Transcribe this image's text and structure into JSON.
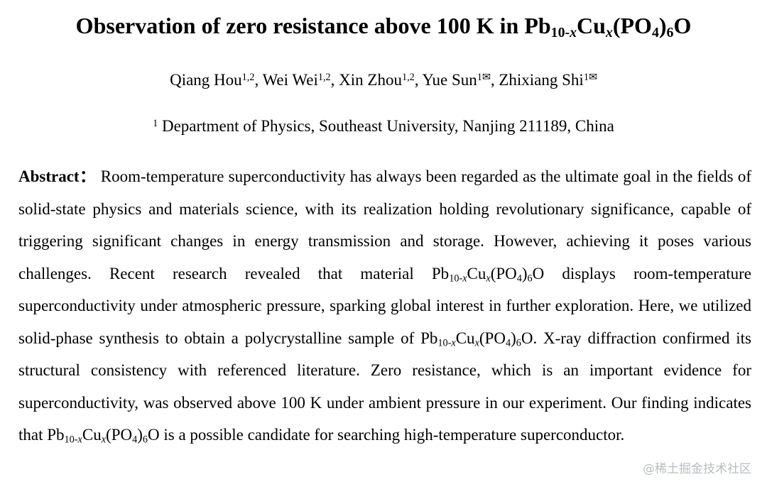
{
  "title": [
    {
      "text": "Observation of zero resistance above 100 K in Pb"
    },
    {
      "text": "10-",
      "sub": true
    },
    {
      "text": "x",
      "sub": true,
      "italic": true
    },
    {
      "text": "Cu"
    },
    {
      "text": "x",
      "sub": true,
      "italic": true
    },
    {
      "text": "(PO"
    },
    {
      "text": "4",
      "sub": true
    },
    {
      "text": ")"
    },
    {
      "text": "6",
      "sub": true
    },
    {
      "text": "O"
    }
  ],
  "authors": [
    {
      "text": "Qiang Hou"
    },
    {
      "text": "1,2",
      "sup": true
    },
    {
      "text": ", Wei Wei"
    },
    {
      "text": "1,2",
      "sup": true
    },
    {
      "text": ", Xin Zhou"
    },
    {
      "text": "1,2",
      "sup": true
    },
    {
      "text": ", Yue Sun"
    },
    {
      "text": "1✉",
      "sup": true
    },
    {
      "text": ", Zhixiang Shi"
    },
    {
      "text": "1✉",
      "sup": true
    }
  ],
  "affiliation": [
    {
      "text": "1",
      "sup": true
    },
    {
      "text": " Department of Physics, Southeast University, Nanjing 211189, China"
    }
  ],
  "abstract": [
    {
      "text": "Abstract：",
      "bold": true
    },
    {
      "text": " Room-temperature superconductivity has always been regarded as the ultimate goal in the fields of solid-state physics and materials science, with its realization holding revolutionary significance, capable of triggering significant changes in energy transmission and storage. However, achieving it poses various challenges. Recent research revealed that material Pb"
    },
    {
      "text": "10-",
      "sub": true
    },
    {
      "text": "x",
      "sub": true,
      "italic": true
    },
    {
      "text": "Cu"
    },
    {
      "text": "x",
      "sub": true,
      "italic": true
    },
    {
      "text": "(PO"
    },
    {
      "text": "4",
      "sub": true
    },
    {
      "text": ")"
    },
    {
      "text": "6",
      "sub": true
    },
    {
      "text": "O displays room-temperature superconductivity under atmospheric pressure, sparking global interest in further exploration. Here, we utilized solid-phase synthesis to obtain a polycrystalline sample of Pb"
    },
    {
      "text": "10-",
      "sub": true
    },
    {
      "text": "x",
      "sub": true,
      "italic": true
    },
    {
      "text": "Cu"
    },
    {
      "text": "x",
      "sub": true,
      "italic": true
    },
    {
      "text": "(PO"
    },
    {
      "text": "4",
      "sub": true
    },
    {
      "text": ")"
    },
    {
      "text": "6",
      "sub": true
    },
    {
      "text": "O. X-ray diffraction confirmed its structural consistency with referenced literature. Zero resistance, which is an important evidence for superconductivity, was observed above 100 K under ambient pressure in our experiment. Our finding indicates that Pb"
    },
    {
      "text": "10-",
      "sub": true
    },
    {
      "text": "x",
      "sub": true,
      "italic": true
    },
    {
      "text": "Cu"
    },
    {
      "text": "x",
      "sub": true,
      "italic": true
    },
    {
      "text": "(PO"
    },
    {
      "text": "4",
      "sub": true
    },
    {
      "text": ")"
    },
    {
      "text": "6",
      "sub": true
    },
    {
      "text": "O is a possible candidate for searching high-temperature superconductor."
    }
  ],
  "watermark": "@稀土掘金技术社区"
}
